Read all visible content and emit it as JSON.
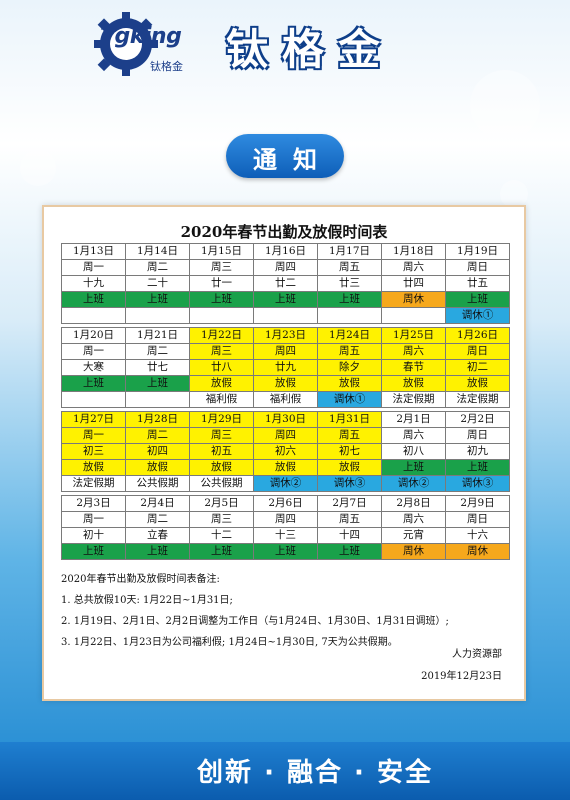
{
  "header": {
    "logo_text": "Tgking",
    "logo_sub": "钛格金",
    "brand": "钛格金"
  },
  "notice": {
    "label": "通知"
  },
  "card": {
    "title": "2020年春节出勤及放假时间表",
    "weeks": [
      {
        "dates": [
          "1月13日",
          "1月14日",
          "1月15日",
          "1月16日",
          "1月17日",
          "1月18日",
          "1月19日"
        ],
        "weekdays": [
          "周一",
          "周二",
          "周三",
          "周四",
          "周五",
          "周六",
          "周日"
        ],
        "lunar": [
          "十九",
          "二十",
          "廿一",
          "廿二",
          "廿三",
          "廿四",
          "廿五"
        ],
        "status": [
          "上班",
          "上班",
          "上班",
          "上班",
          "上班",
          "周休",
          "上班"
        ],
        "extra": [
          "",
          "",
          "",
          "",
          "",
          "",
          "调休①"
        ]
      },
      {
        "dates": [
          "1月20日",
          "1月21日",
          "1月22日",
          "1月23日",
          "1月24日",
          "1月25日",
          "1月26日"
        ],
        "weekdays": [
          "周一",
          "周二",
          "周三",
          "周四",
          "周五",
          "周六",
          "周日"
        ],
        "lunar": [
          "大寒",
          "廿七",
          "廿八",
          "廿九",
          "除夕",
          "春节",
          "初二"
        ],
        "status": [
          "上班",
          "上班",
          "放假",
          "放假",
          "放假",
          "放假",
          "放假"
        ],
        "extra": [
          "",
          "",
          "福利假",
          "福利假",
          "调休①",
          "法定假期",
          "法定假期"
        ]
      },
      {
        "dates": [
          "1月27日",
          "1月28日",
          "1月29日",
          "1月30日",
          "1月31日",
          "2月1日",
          "2月2日"
        ],
        "weekdays": [
          "周一",
          "周二",
          "周三",
          "周四",
          "周五",
          "周六",
          "周日"
        ],
        "lunar": [
          "初三",
          "初四",
          "初五",
          "初六",
          "初七",
          "初八",
          "初九"
        ],
        "status": [
          "放假",
          "放假",
          "放假",
          "放假",
          "放假",
          "上班",
          "上班"
        ],
        "extra": [
          "法定假期",
          "公共假期",
          "公共假期",
          "调休②",
          "调休③",
          "调休②",
          "调休③"
        ]
      },
      {
        "dates": [
          "2月3日",
          "2月4日",
          "2月5日",
          "2月6日",
          "2月7日",
          "2月8日",
          "2月9日"
        ],
        "weekdays": [
          "周一",
          "周二",
          "周三",
          "周四",
          "周五",
          "周六",
          "周日"
        ],
        "lunar": [
          "初十",
          "立春",
          "十二",
          "十三",
          "十四",
          "元宵",
          "十六"
        ],
        "status": [
          "上班",
          "上班",
          "上班",
          "上班",
          "上班",
          "周休",
          "周休"
        ]
      }
    ],
    "notes": [
      "2020年春节出勤及放假时间表备注:",
      "1. 总共放假10天: 1月22日~1月31日;",
      "2. 1月19日、2月1日、2月2日调整为工作日（与1月24日、1月30日、1月31日调班）;",
      "3. 1月22日、1月23日为公司福利假; 1月24日~1月30日, 7天为公共假期。"
    ],
    "department": "人力资源部",
    "date": "2019年12月23日"
  },
  "footer": {
    "slogan": "创新 · 融合 · 安全"
  },
  "colors": {
    "work": "#1aa14a",
    "holiday": "#fff200",
    "weekend_rest": "#f6a81c",
    "shift": "#29a8e0"
  }
}
